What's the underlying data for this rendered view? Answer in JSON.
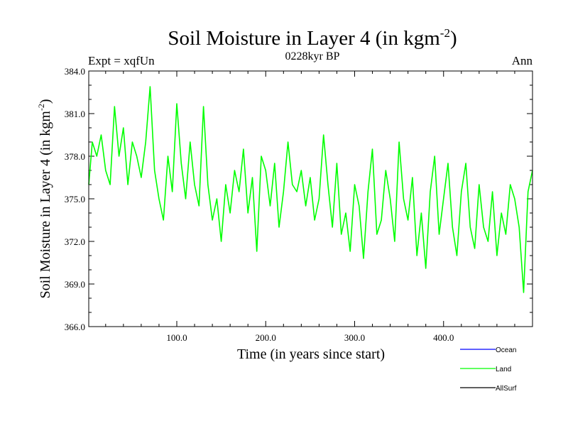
{
  "colors": {
    "ocean": "#0000ff",
    "land": "#00ff00",
    "allsurf": "#000000",
    "axis": "#000000"
  },
  "chart_data": {
    "type": "line",
    "title_main": "Soil Moisture in Layer 4 (in kgm",
    "title_sup": "-2",
    "title_close": ")",
    "subtitle": "0228kyr BP",
    "left_label": "Expt = xqfUn",
    "right_label": "Ann",
    "xlabel": "Time (in years since start)",
    "ylabel_main": "Soil Moisture in Layer 4 (in kgm",
    "ylabel_sup": "-2",
    "ylabel_close": ")",
    "xlim": [
      1,
      500
    ],
    "ylim": [
      366.0,
      384.0
    ],
    "x_ticks": [
      100,
      200,
      300,
      400
    ],
    "x_tick_labels": [
      "100.0",
      "200.0",
      "300.0",
      "400.0"
    ],
    "y_ticks": [
      366,
      369,
      372,
      375,
      378,
      381,
      384
    ],
    "y_tick_labels": [
      "366.0",
      "369.0",
      "372.0",
      "375.0",
      "378.0",
      "381.0",
      "384.0"
    ],
    "legend": [
      {
        "name": "Ocean",
        "color": "#0000ff"
      },
      {
        "name": "Land",
        "color": "#00ff00"
      },
      {
        "name": "AllSurf",
        "color": "#000000"
      }
    ],
    "series": [
      {
        "name": "Land",
        "color": "#00ff00",
        "x": [
          1,
          5,
          10,
          15,
          20,
          25,
          30,
          35,
          40,
          45,
          50,
          55,
          60,
          65,
          70,
          75,
          80,
          85,
          90,
          95,
          100,
          105,
          110,
          115,
          120,
          125,
          130,
          135,
          140,
          145,
          150,
          155,
          160,
          165,
          170,
          175,
          180,
          185,
          190,
          195,
          200,
          205,
          210,
          215,
          220,
          225,
          230,
          235,
          240,
          245,
          250,
          255,
          260,
          265,
          270,
          275,
          280,
          285,
          290,
          295,
          300,
          305,
          310,
          315,
          320,
          325,
          330,
          335,
          340,
          345,
          350,
          355,
          360,
          365,
          370,
          375,
          380,
          385,
          390,
          395,
          400,
          405,
          410,
          415,
          420,
          425,
          430,
          435,
          440,
          445,
          450,
          455,
          460,
          465,
          470,
          475,
          480,
          485,
          490,
          495,
          500
        ],
        "y": [
          376.0,
          379.0,
          378.0,
          379.5,
          377.0,
          376.0,
          381.5,
          378.0,
          380.0,
          376.0,
          379.0,
          378.0,
          376.5,
          379.0,
          382.9,
          377.0,
          375.0,
          373.5,
          378.0,
          375.5,
          381.7,
          377.5,
          375.0,
          379.0,
          376.0,
          374.5,
          381.5,
          376.0,
          373.5,
          375.0,
          372.0,
          376.0,
          374.0,
          377.0,
          375.5,
          378.5,
          374.0,
          376.5,
          371.3,
          378.0,
          377.0,
          374.5,
          377.5,
          373.0,
          375.5,
          379.0,
          376.0,
          375.5,
          377.0,
          374.5,
          376.5,
          373.5,
          375.0,
          379.5,
          376.0,
          373.0,
          377.5,
          372.5,
          374.0,
          371.3,
          376.0,
          374.5,
          370.8,
          375.5,
          378.5,
          372.5,
          373.5,
          377.0,
          375.0,
          372.0,
          379.0,
          375.0,
          373.5,
          376.5,
          371.0,
          374.0,
          370.1,
          375.5,
          378.0,
          372.5,
          375.0,
          377.5,
          373.0,
          371.0,
          375.5,
          377.5,
          373.0,
          371.5,
          376.0,
          373.0,
          372.0,
          375.5,
          371.0,
          374.0,
          372.5,
          376.0,
          375.0,
          373.0,
          368.4,
          375.5,
          377.0
        ]
      }
    ]
  }
}
